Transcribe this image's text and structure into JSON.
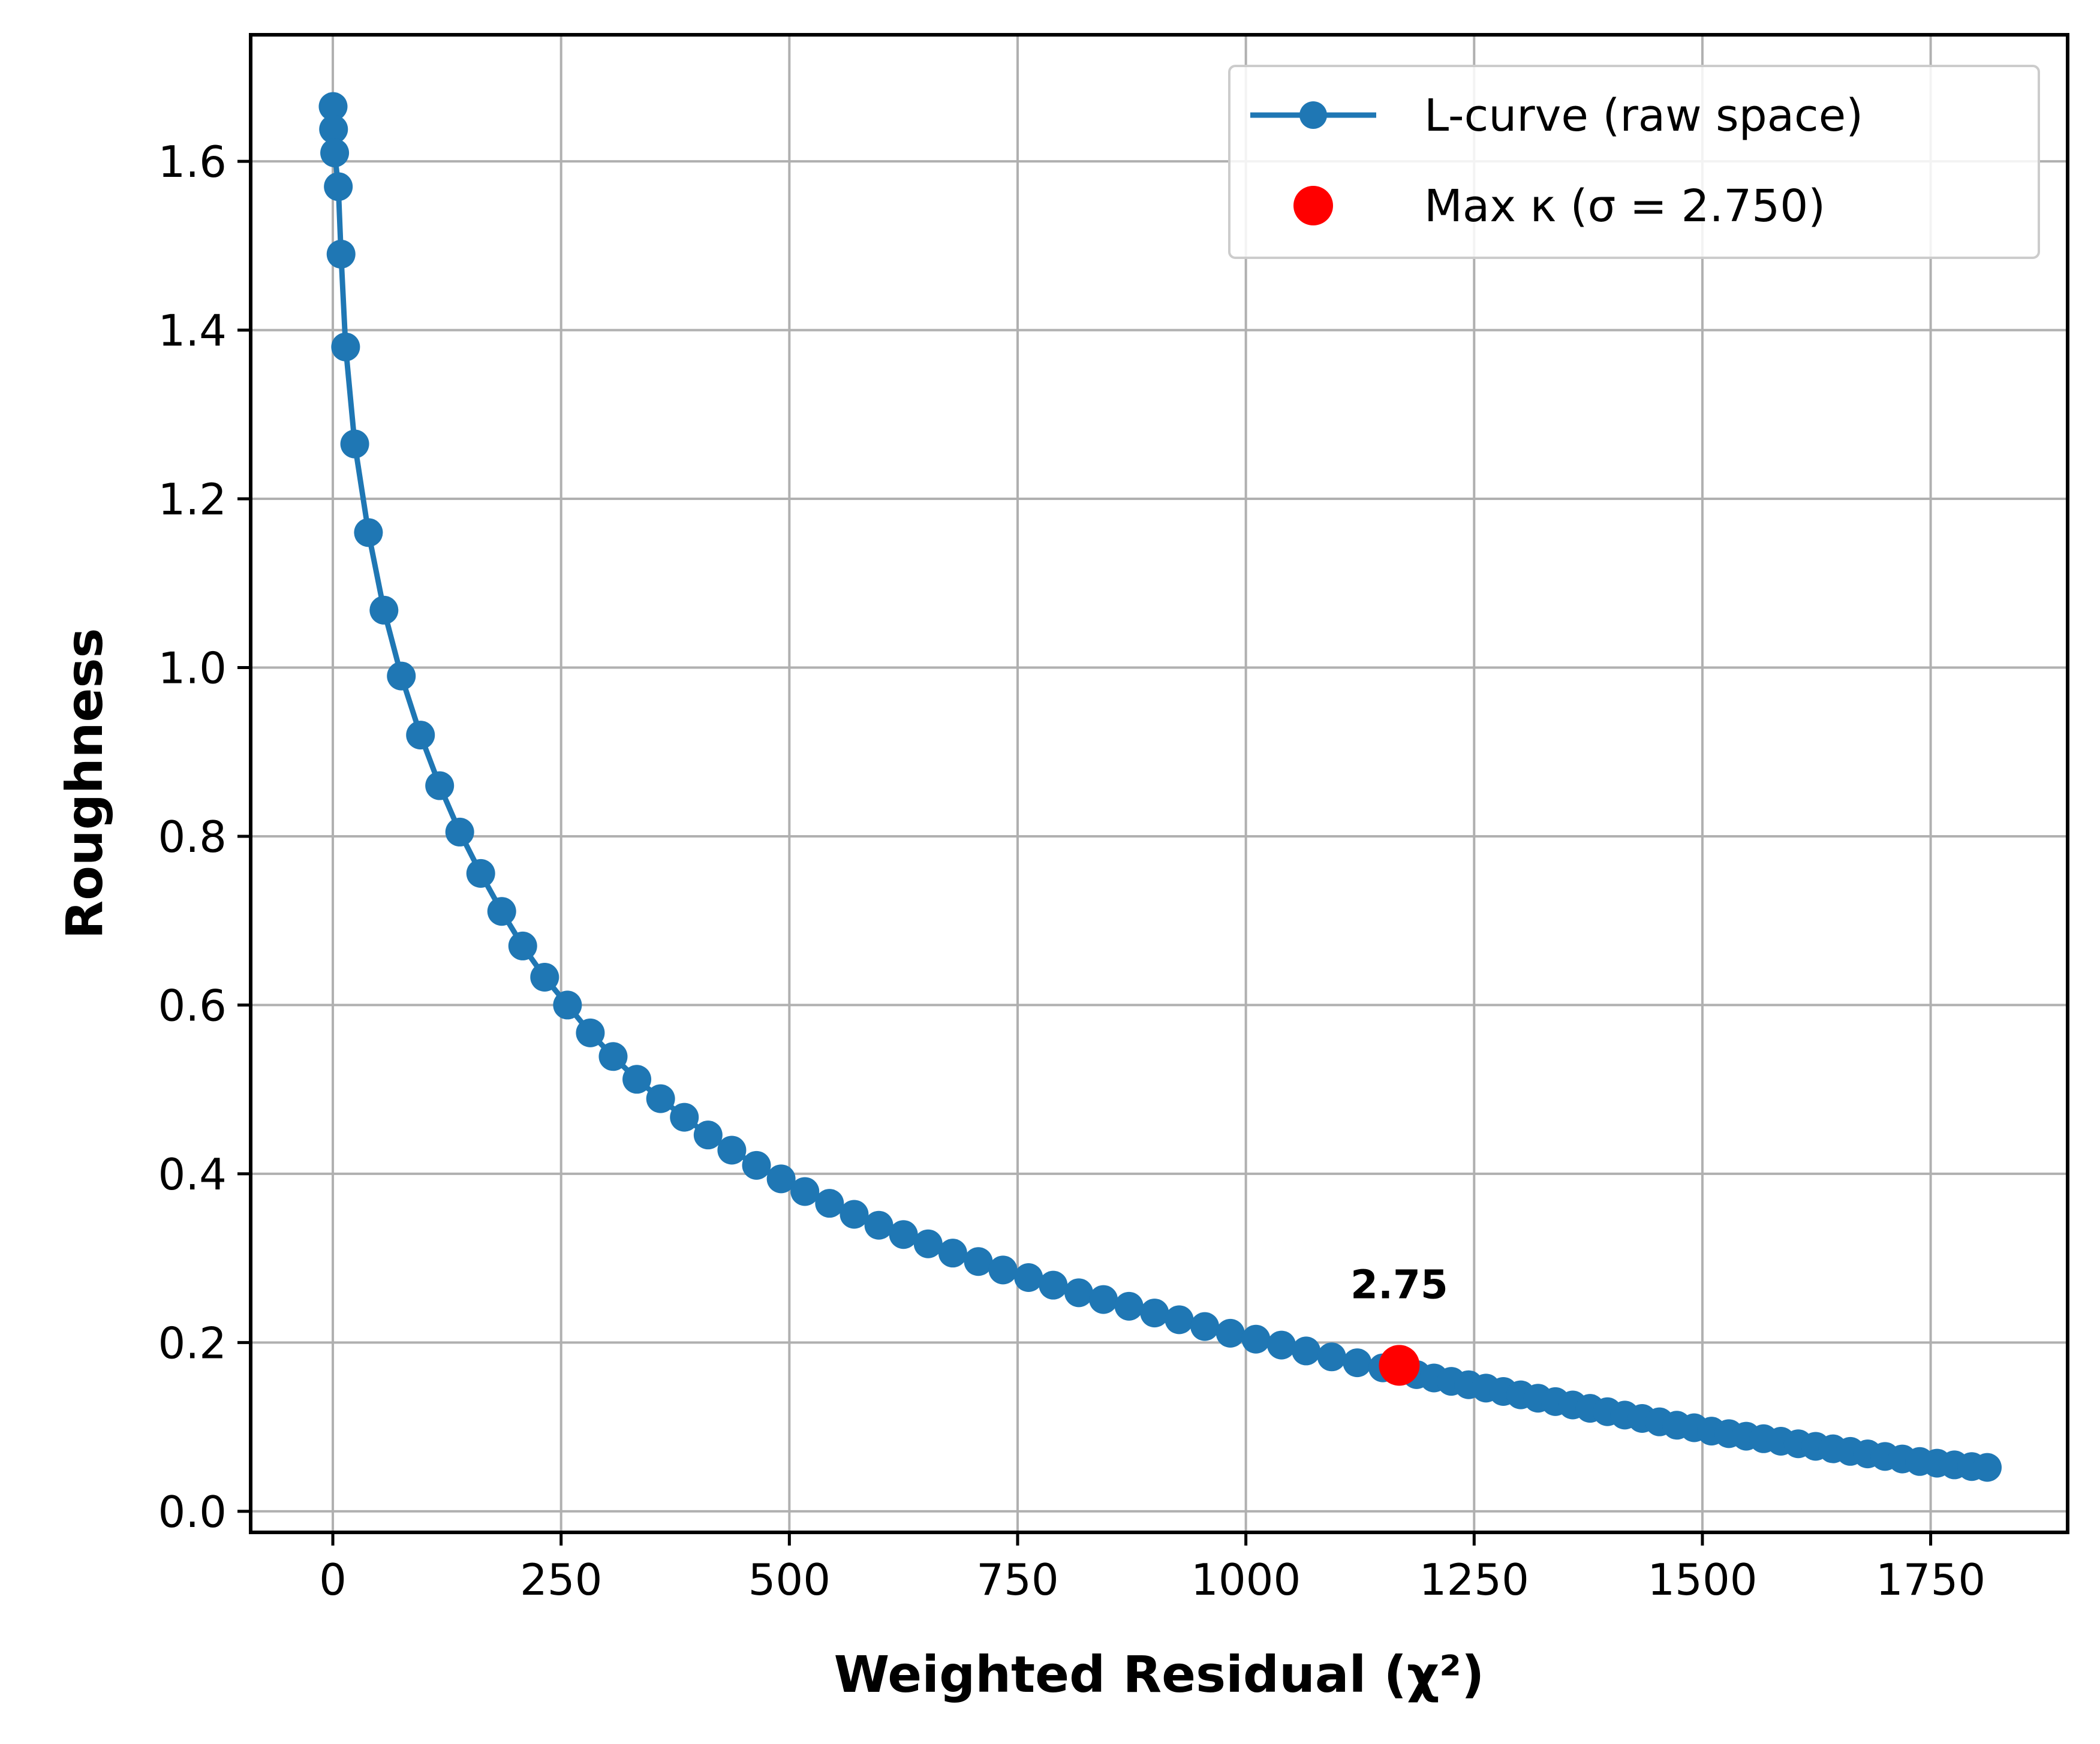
{
  "chart_data": {
    "type": "line",
    "xlabel": "Weighted Residual (χ²)",
    "ylabel": "Roughness",
    "xlim": [
      -90,
      1900
    ],
    "ylim": [
      -0.025,
      1.75
    ],
    "x_ticks": [
      0,
      250,
      500,
      750,
      1000,
      1250,
      1500,
      1750
    ],
    "x_tick_labels": [
      "0",
      "250",
      "500",
      "750",
      "1000",
      "1250",
      "1500",
      "1750"
    ],
    "y_ticks": [
      0.0,
      0.2,
      0.4,
      0.6,
      0.8,
      1.0,
      1.2,
      1.4,
      1.6
    ],
    "y_tick_labels": [
      "0.0",
      "0.2",
      "0.4",
      "0.6",
      "0.8",
      "1.0",
      "1.2",
      "1.4",
      "1.6"
    ],
    "grid": true,
    "legend_position": "top-right",
    "series": [
      {
        "name": "L-curve (raw space)",
        "color": "#1f77b4",
        "marker": "circle",
        "points": [
          [
            0.3,
            1.665
          ],
          [
            0.8,
            1.638
          ],
          [
            2,
            1.61
          ],
          [
            6,
            1.57
          ],
          [
            9,
            1.49
          ],
          [
            14,
            1.38
          ],
          [
            24,
            1.265
          ],
          [
            39,
            1.16
          ],
          [
            56,
            1.068
          ],
          [
            75,
            0.99
          ],
          [
            96,
            0.92
          ],
          [
            117,
            0.86
          ],
          [
            139,
            0.805
          ],
          [
            162,
            0.756
          ],
          [
            185,
            0.711
          ],
          [
            208,
            0.67
          ],
          [
            232,
            0.633
          ],
          [
            257,
            0.6
          ],
          [
            282,
            0.567
          ],
          [
            307,
            0.539
          ],
          [
            333,
            0.512
          ],
          [
            359,
            0.489
          ],
          [
            385,
            0.467
          ],
          [
            411,
            0.446
          ],
          [
            437,
            0.428
          ],
          [
            464,
            0.41
          ],
          [
            491,
            0.394
          ],
          [
            517,
            0.379
          ],
          [
            544,
            0.365
          ],
          [
            571,
            0.352
          ],
          [
            598,
            0.339
          ],
          [
            625,
            0.328
          ],
          [
            652,
            0.317
          ],
          [
            679,
            0.306
          ],
          [
            707,
            0.296
          ],
          [
            734,
            0.286
          ],
          [
            762,
            0.277
          ],
          [
            789,
            0.268
          ],
          [
            817,
            0.259
          ],
          [
            844,
            0.251
          ],
          [
            872,
            0.243
          ],
          [
            900,
            0.235
          ],
          [
            927,
            0.227
          ],
          [
            955,
            0.219
          ],
          [
            983,
            0.211
          ],
          [
            1011,
            0.204
          ],
          [
            1039,
            0.197
          ],
          [
            1066,
            0.19
          ],
          [
            1094,
            0.183
          ],
          [
            1122,
            0.176
          ],
          [
            1150,
            0.17
          ],
          [
            1168,
            0.166
          ],
          [
            1187,
            0.162
          ],
          [
            1206,
            0.158
          ],
          [
            1225,
            0.154
          ],
          [
            1244,
            0.15
          ],
          [
            1263,
            0.146
          ],
          [
            1282,
            0.142
          ],
          [
            1301,
            0.138
          ],
          [
            1320,
            0.134
          ],
          [
            1339,
            0.13
          ],
          [
            1358,
            0.126
          ],
          [
            1377,
            0.122
          ],
          [
            1396,
            0.118
          ],
          [
            1415,
            0.114
          ],
          [
            1434,
            0.11
          ],
          [
            1453,
            0.106
          ],
          [
            1472,
            0.102
          ],
          [
            1491,
            0.099
          ],
          [
            1510,
            0.095
          ],
          [
            1529,
            0.092
          ],
          [
            1548,
            0.089
          ],
          [
            1567,
            0.086
          ],
          [
            1586,
            0.083
          ],
          [
            1605,
            0.08
          ],
          [
            1624,
            0.077
          ],
          [
            1643,
            0.074
          ],
          [
            1662,
            0.071
          ],
          [
            1681,
            0.068
          ],
          [
            1700,
            0.065
          ],
          [
            1719,
            0.062
          ],
          [
            1738,
            0.059
          ],
          [
            1757,
            0.057
          ],
          [
            1776,
            0.055
          ],
          [
            1795,
            0.053
          ],
          [
            1812,
            0.052
          ]
        ]
      },
      {
        "name": "Max κ (σ = 2.750)",
        "color": "#ff0000",
        "marker": "circle",
        "points": [
          [
            1168,
            0.173
          ]
        ]
      }
    ],
    "annotations": [
      {
        "text": "2.75",
        "x": 1168,
        "y": 0.173
      }
    ]
  }
}
